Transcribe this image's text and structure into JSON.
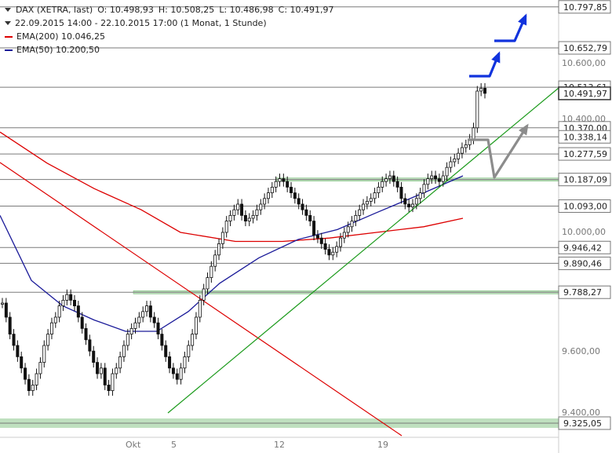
{
  "legend": {
    "symbol": "DAX (XETRA, last)",
    "open": "O: 10.498,93",
    "high": "H: 10.508,25",
    "low": "L: 10.486,98",
    "close": "C: 10.491,97",
    "range": "22.09.2015 14:00 - 22.10.2015 17:00 (1 Monat, 1 Stunde)",
    "ema200": "EMA(200)  10.046,25",
    "ema50": "EMA(50)  10.200,50"
  },
  "colors": {
    "ema200": "#dd0000",
    "ema50": "#1a1a99",
    "trend": "#1a9a1a",
    "zone": "#bfe0bf",
    "blue_arrow": "#1133dd",
    "gray_arrow": "#8c8c8c",
    "candle": "#111111"
  },
  "chart_data": {
    "type": "candlestick",
    "ylim": [
      9300,
      10850
    ],
    "y_ticks": [
      "10.600,00",
      "10.400,00",
      "10.000,00",
      "9.600,00",
      "9.400,00"
    ],
    "x_ticks": [
      "Okt",
      "5",
      "12",
      "19"
    ],
    "close_series": [
      9750,
      9700,
      9640,
      9600,
      9560,
      9520,
      9480,
      9440,
      9460,
      9500,
      9540,
      9600,
      9640,
      9680,
      9700,
      9740,
      9760,
      9780,
      9760,
      9740,
      9700,
      9660,
      9620,
      9580,
      9540,
      9500,
      9520,
      9460,
      9440,
      9500,
      9520,
      9560,
      9600,
      9640,
      9660,
      9680,
      9700,
      9720,
      9740,
      9700,
      9680,
      9640,
      9600,
      9560,
      9520,
      9500,
      9480,
      9520,
      9560,
      9600,
      9640,
      9700,
      9760,
      9800,
      9840,
      9880,
      9920,
      9960,
      10000,
      10040,
      10060,
      10080,
      10100,
      10060,
      10040,
      10050,
      10060,
      10080,
      10100,
      10120,
      10140,
      10160,
      10180,
      10190,
      10180,
      10160,
      10140,
      10120,
      10100,
      10080,
      10060,
      10040,
      9990,
      9980,
      9960,
      9940,
      9920,
      9930,
      9950,
      9980,
      10000,
      10020,
      10040,
      10060,
      10080,
      10100,
      10110,
      10120,
      10140,
      10160,
      10180,
      10190,
      10200,
      10180,
      10160,
      10120,
      10100,
      10090,
      10100,
      10120,
      10140,
      10170,
      10190,
      10200,
      10190,
      10180,
      10200,
      10230,
      10250,
      10260,
      10280,
      10300,
      10310,
      10330,
      10370,
      10500,
      10510,
      10492
    ],
    "ema200": [
      [
        0,
        10355
      ],
      [
        60,
        10245
      ],
      [
        120,
        10155
      ],
      [
        180,
        10080
      ],
      [
        230,
        10000
      ],
      [
        300,
        9968
      ],
      [
        360,
        9968
      ],
      [
        420,
        9980
      ],
      [
        480,
        10000
      ],
      [
        540,
        10020
      ],
      [
        590,
        10050
      ]
    ],
    "ema50": [
      [
        0,
        10060
      ],
      [
        40,
        9830
      ],
      [
        80,
        9740
      ],
      [
        120,
        9690
      ],
      [
        160,
        9650
      ],
      [
        200,
        9650
      ],
      [
        240,
        9720
      ],
      [
        280,
        9820
      ],
      [
        330,
        9910
      ],
      [
        380,
        9975
      ],
      [
        430,
        10010
      ],
      [
        480,
        10070
      ],
      [
        540,
        10140
      ],
      [
        590,
        10200
      ]
    ],
    "horizontal_levels": [
      "10.797,85",
      "10.652,79",
      "10.513,61",
      "10.370,00",
      "10.338,14",
      "10.277,59",
      "10.187,09",
      "10.093,00",
      "9.946,42",
      "9.890,46",
      "9.788,27",
      "9.325,05"
    ],
    "last_price": "10.491,97"
  }
}
